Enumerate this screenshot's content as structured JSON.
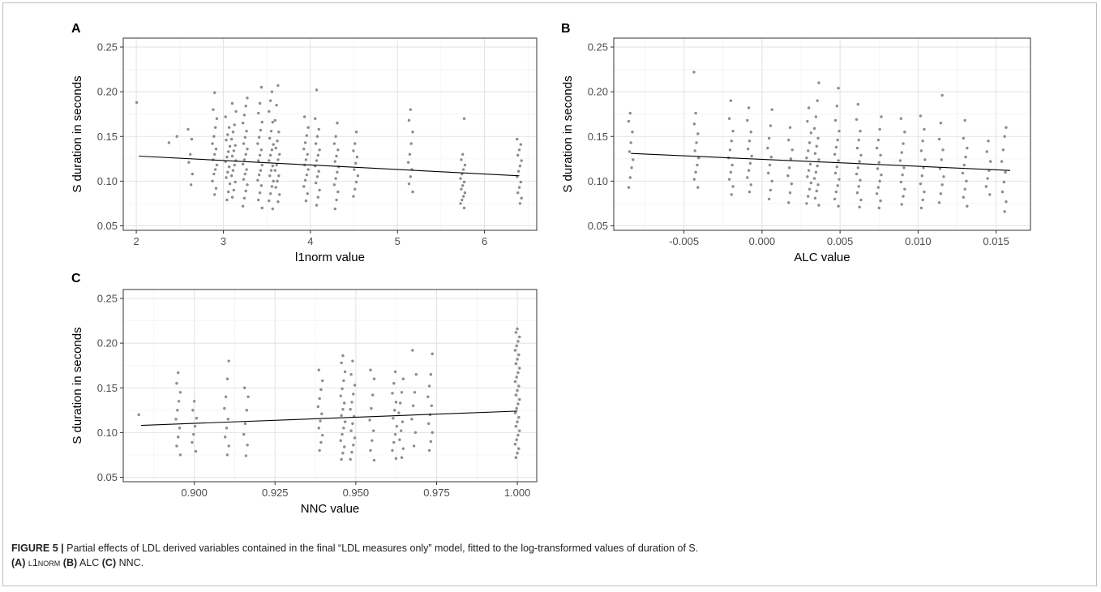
{
  "caption": {
    "label": "FIGURE 5 |",
    "text": "Partial effects of LDL derived variables contained in the final “LDL measures only” model, fitted to the log-transformed values of duration of S.",
    "parts": [
      {
        "tag": "(A)",
        "name": "l1norm"
      },
      {
        "tag": "(B)",
        "name": "ALC"
      },
      {
        "tag": "(C)",
        "name": "NNC."
      }
    ]
  },
  "colors": {
    "points": "#8c8c8c",
    "fit_line": "#000000",
    "grid": "#e4e4e4"
  },
  "chart_data": [
    {
      "panel": "A",
      "type": "scatter",
      "xlabel": "l1norm value",
      "ylabel": "S duration in seconds",
      "xlim": [
        1.85,
        6.6
      ],
      "ylim": [
        0.045,
        0.26
      ],
      "xticks": [
        2,
        3,
        4,
        5,
        6
      ],
      "xtick_labels": [
        "2",
        "3",
        "4",
        "5",
        "6"
      ],
      "yticks": [
        0.05,
        0.1,
        0.15,
        0.2,
        0.25
      ],
      "ytick_labels": [
        "0.05",
        "0.10",
        "0.15",
        "0.20",
        "0.25"
      ],
      "grid": true,
      "fit_line": {
        "x": [
          2.03,
          6.4
        ],
        "y": [
          0.128,
          0.106
        ]
      },
      "clusters": [
        {
          "x": 2.03,
          "y": [
            0.188
          ]
        },
        {
          "x": 2.35,
          "y": [
            0.143
          ]
        },
        {
          "x": 2.45,
          "y": [
            0.15
          ]
        },
        {
          "x": 2.62,
          "y": [
            0.096,
            0.108,
            0.121,
            0.13,
            0.147,
            0.158
          ]
        },
        {
          "x": 2.9,
          "y": [
            0.085,
            0.092,
            0.1,
            0.108,
            0.113,
            0.118,
            0.124,
            0.13,
            0.136,
            0.142,
            0.15,
            0.16,
            0.17,
            0.18,
            0.199
          ]
        },
        {
          "x": 3.05,
          "y": [
            0.079,
            0.088,
            0.097,
            0.104,
            0.11,
            0.116,
            0.122,
            0.127,
            0.133,
            0.139,
            0.146,
            0.152,
            0.16,
            0.172
          ]
        },
        {
          "x": 3.12,
          "y": [
            0.082,
            0.09,
            0.099,
            0.106,
            0.112,
            0.118,
            0.123,
            0.128,
            0.134,
            0.14,
            0.147,
            0.155,
            0.163,
            0.178,
            0.187
          ]
        },
        {
          "x": 3.25,
          "y": [
            0.072,
            0.081,
            0.089,
            0.096,
            0.102,
            0.108,
            0.113,
            0.119,
            0.124,
            0.13,
            0.136,
            0.142,
            0.149,
            0.156,
            0.165,
            0.174,
            0.184,
            0.193
          ]
        },
        {
          "x": 3.42,
          "y": [
            0.07,
            0.079,
            0.087,
            0.095,
            0.101,
            0.107,
            0.112,
            0.118,
            0.123,
            0.129,
            0.135,
            0.142,
            0.149,
            0.157,
            0.166,
            0.176,
            0.187,
            0.205
          ]
        },
        {
          "x": 3.55,
          "y": [
            0.069,
            0.078,
            0.086,
            0.094,
            0.1,
            0.106,
            0.112,
            0.117,
            0.123,
            0.129,
            0.135,
            0.141,
            0.148,
            0.156,
            0.166,
            0.178,
            0.19,
            0.2
          ]
        },
        {
          "x": 3.62,
          "y": [
            0.077,
            0.085,
            0.093,
            0.1,
            0.106,
            0.112,
            0.118,
            0.124,
            0.13,
            0.137,
            0.145,
            0.155,
            0.168,
            0.185,
            0.207
          ]
        },
        {
          "x": 3.95,
          "y": [
            0.078,
            0.086,
            0.094,
            0.101,
            0.107,
            0.113,
            0.118,
            0.124,
            0.13,
            0.136,
            0.143,
            0.151,
            0.16,
            0.172
          ]
        },
        {
          "x": 4.08,
          "y": [
            0.073,
            0.082,
            0.09,
            0.098,
            0.105,
            0.111,
            0.117,
            0.123,
            0.129,
            0.135,
            0.142,
            0.15,
            0.158,
            0.17,
            0.202
          ]
        },
        {
          "x": 4.3,
          "y": [
            0.069,
            0.079,
            0.088,
            0.096,
            0.103,
            0.11,
            0.116,
            0.122,
            0.128,
            0.135,
            0.142,
            0.15,
            0.165
          ]
        },
        {
          "x": 4.52,
          "y": [
            0.083,
            0.091,
            0.099,
            0.106,
            0.113,
            0.12,
            0.127,
            0.134,
            0.142,
            0.155
          ]
        },
        {
          "x": 5.15,
          "y": [
            0.088,
            0.097,
            0.105,
            0.113,
            0.121,
            0.13,
            0.142,
            0.155,
            0.168,
            0.18
          ]
        },
        {
          "x": 5.75,
          "y": [
            0.07,
            0.075,
            0.079,
            0.083,
            0.087,
            0.091,
            0.095,
            0.099,
            0.103,
            0.108,
            0.113,
            0.118,
            0.124,
            0.13,
            0.17
          ]
        },
        {
          "x": 6.4,
          "y": [
            0.075,
            0.081,
            0.087,
            0.093,
            0.099,
            0.105,
            0.111,
            0.117,
            0.123,
            0.129,
            0.135,
            0.141,
            0.147
          ]
        }
      ]
    },
    {
      "panel": "B",
      "type": "scatter",
      "xlabel": "ALC value",
      "ylabel": "S duration in seconds",
      "xlim": [
        -0.0095,
        0.0172
      ],
      "ylim": [
        0.045,
        0.26
      ],
      "xticks": [
        -0.005,
        0.0,
        0.005,
        0.01,
        0.015
      ],
      "xtick_labels": [
        "-0.005",
        "0.000",
        "0.005",
        "0.010",
        "0.015"
      ],
      "yticks": [
        0.05,
        0.1,
        0.15,
        0.2,
        0.25
      ],
      "ytick_labels": [
        "0.05",
        "0.10",
        "0.15",
        "0.20",
        "0.25"
      ],
      "grid": true,
      "fit_line": {
        "x": [
          -0.0084,
          0.0159
        ],
        "y": [
          0.131,
          0.112
        ]
      },
      "clusters": [
        {
          "x": -0.0084,
          "y": [
            0.093,
            0.104,
            0.115,
            0.124,
            0.133,
            0.143,
            0.155,
            0.167,
            0.176
          ]
        },
        {
          "x": -0.0045,
          "y": [
            0.222
          ]
        },
        {
          "x": -0.0042,
          "y": [
            0.093,
            0.102,
            0.11,
            0.118,
            0.126,
            0.134,
            0.143,
            0.153,
            0.164,
            0.176
          ]
        },
        {
          "x": -0.002,
          "y": [
            0.085,
            0.094,
            0.102,
            0.11,
            0.118,
            0.126,
            0.135,
            0.145,
            0.156,
            0.17,
            0.19
          ]
        },
        {
          "x": -0.0008,
          "y": [
            0.088,
            0.096,
            0.104,
            0.112,
            0.12,
            0.128,
            0.136,
            0.145,
            0.155,
            0.168,
            0.182
          ]
        },
        {
          "x": 0.0005,
          "y": [
            0.08,
            0.09,
            0.1,
            0.109,
            0.118,
            0.127,
            0.137,
            0.148,
            0.162,
            0.18
          ]
        },
        {
          "x": 0.0018,
          "y": [
            0.076,
            0.087,
            0.097,
            0.106,
            0.115,
            0.125,
            0.135,
            0.146,
            0.16
          ]
        },
        {
          "x": 0.003,
          "y": [
            0.075,
            0.083,
            0.091,
            0.098,
            0.105,
            0.112,
            0.119,
            0.126,
            0.134,
            0.143,
            0.154,
            0.167,
            0.182
          ]
        },
        {
          "x": 0.0035,
          "y": [
            0.073,
            0.081,
            0.089,
            0.096,
            0.103,
            0.11,
            0.117,
            0.124,
            0.131,
            0.139,
            0.148,
            0.159,
            0.172,
            0.19,
            0.21
          ]
        },
        {
          "x": 0.0048,
          "y": [
            0.072,
            0.08,
            0.088,
            0.095,
            0.102,
            0.109,
            0.116,
            0.123,
            0.13,
            0.138,
            0.146,
            0.156,
            0.168,
            0.184,
            0.204
          ]
        },
        {
          "x": 0.0062,
          "y": [
            0.071,
            0.079,
            0.087,
            0.094,
            0.101,
            0.108,
            0.115,
            0.122,
            0.129,
            0.137,
            0.146,
            0.156,
            0.169,
            0.186
          ]
        },
        {
          "x": 0.0075,
          "y": [
            0.07,
            0.078,
            0.086,
            0.093,
            0.1,
            0.107,
            0.114,
            0.121,
            0.129,
            0.137,
            0.146,
            0.158,
            0.172
          ]
        },
        {
          "x": 0.009,
          "y": [
            0.074,
            0.083,
            0.091,
            0.099,
            0.107,
            0.115,
            0.123,
            0.132,
            0.142,
            0.155,
            0.17
          ]
        },
        {
          "x": 0.0103,
          "y": [
            0.07,
            0.079,
            0.088,
            0.097,
            0.106,
            0.115,
            0.124,
            0.134,
            0.145,
            0.158,
            0.173
          ]
        },
        {
          "x": 0.0115,
          "y": [
            0.076,
            0.086,
            0.096,
            0.105,
            0.114,
            0.124,
            0.135,
            0.147,
            0.165,
            0.196
          ]
        },
        {
          "x": 0.013,
          "y": [
            0.072,
            0.082,
            0.091,
            0.1,
            0.109,
            0.118,
            0.127,
            0.137,
            0.148,
            0.168
          ]
        },
        {
          "x": 0.0145,
          "y": [
            0.085,
            0.094,
            0.103,
            0.112,
            0.122,
            0.133,
            0.145
          ]
        },
        {
          "x": 0.0155,
          "y": [
            0.066,
            0.077,
            0.088,
            0.099,
            0.11,
            0.122,
            0.135,
            0.15,
            0.16
          ]
        }
      ]
    },
    {
      "panel": "C",
      "type": "scatter",
      "xlabel": "NNC value",
      "ylabel": "S duration in seconds",
      "xlim": [
        0.878,
        1.006
      ],
      "ylim": [
        0.045,
        0.26
      ],
      "xticks": [
        0.9,
        0.925,
        0.95,
        0.975,
        1.0
      ],
      "xtick_labels": [
        "0.900",
        "0.925",
        "0.950",
        "0.975",
        "1.000"
      ],
      "yticks": [
        0.05,
        0.1,
        0.15,
        0.2,
        0.25
      ],
      "ytick_labels": [
        "0.05",
        "0.10",
        "0.15",
        "0.20",
        "0.25"
      ],
      "grid": true,
      "fit_line": {
        "x": [
          0.8835,
          1.0
        ],
        "y": [
          0.108,
          0.124
        ]
      },
      "clusters": [
        {
          "x": 0.8835,
          "y": [
            0.12
          ]
        },
        {
          "x": 0.895,
          "y": [
            0.075,
            0.085,
            0.095,
            0.105,
            0.115,
            0.125,
            0.135,
            0.145,
            0.155,
            0.167
          ]
        },
        {
          "x": 0.9,
          "y": [
            0.079,
            0.089,
            0.098,
            0.107,
            0.116,
            0.125,
            0.135
          ]
        },
        {
          "x": 0.91,
          "y": [
            0.075,
            0.085,
            0.095,
            0.105,
            0.115,
            0.127,
            0.14,
            0.16,
            0.18
          ]
        },
        {
          "x": 0.916,
          "y": [
            0.074,
            0.086,
            0.098,
            0.11,
            0.125,
            0.14,
            0.15
          ]
        },
        {
          "x": 0.939,
          "y": [
            0.08,
            0.089,
            0.097,
            0.105,
            0.113,
            0.121,
            0.129,
            0.138,
            0.148,
            0.158,
            0.17
          ]
        },
        {
          "x": 0.946,
          "y": [
            0.07,
            0.077,
            0.084,
            0.091,
            0.098,
            0.105,
            0.112,
            0.119,
            0.126,
            0.133,
            0.141,
            0.149,
            0.158,
            0.168,
            0.178,
            0.186
          ]
        },
        {
          "x": 0.949,
          "y": [
            0.07,
            0.078,
            0.086,
            0.094,
            0.102,
            0.11,
            0.118,
            0.126,
            0.134,
            0.143,
            0.153,
            0.165,
            0.18
          ]
        },
        {
          "x": 0.955,
          "y": [
            0.069,
            0.08,
            0.091,
            0.102,
            0.114,
            0.127,
            0.142,
            0.16,
            0.17
          ]
        },
        {
          "x": 0.962,
          "y": [
            0.071,
            0.08,
            0.089,
            0.098,
            0.107,
            0.116,
            0.125,
            0.134,
            0.144,
            0.155,
            0.168
          ]
        },
        {
          "x": 0.964,
          "y": [
            0.072,
            0.082,
            0.092,
            0.102,
            0.112,
            0.122,
            0.133,
            0.145,
            0.16
          ]
        },
        {
          "x": 0.968,
          "y": [
            0.085,
            0.1,
            0.115,
            0.13,
            0.145,
            0.165,
            0.192
          ]
        },
        {
          "x": 0.973,
          "y": [
            0.08,
            0.09,
            0.1,
            0.11,
            0.12,
            0.13,
            0.14,
            0.152,
            0.165,
            0.188
          ]
        },
        {
          "x": 1.0,
          "y": [
            0.072,
            0.077,
            0.082,
            0.087,
            0.092,
            0.097,
            0.102,
            0.107,
            0.112,
            0.117,
            0.122,
            0.127,
            0.132,
            0.137,
            0.142,
            0.147,
            0.152,
            0.157,
            0.162,
            0.167,
            0.172,
            0.177,
            0.182,
            0.187,
            0.192,
            0.197,
            0.202,
            0.207,
            0.212,
            0.216
          ]
        }
      ]
    }
  ]
}
